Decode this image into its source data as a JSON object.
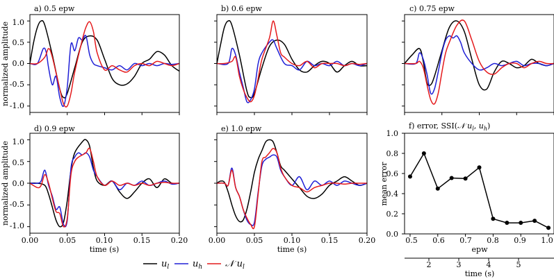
{
  "colors": {
    "ul": "#000000",
    "uh": "#1f1fd6",
    "nul": "#e41a1c"
  },
  "legend": [
    {
      "key": "ul",
      "label": "u_l"
    },
    {
      "key": "uh",
      "label": "u_h"
    },
    {
      "key": "nul",
      "label": "𝒩 u_l"
    }
  ],
  "chart_data": [
    {
      "type": "line",
      "id": "a",
      "title": "a) 0.5 epw",
      "ylabel": "normalized amplitude",
      "xlabel": "",
      "xlim": [
        0.0,
        0.2
      ],
      "ylim": [
        -1.15,
        1.15
      ],
      "xticks": [],
      "yticks": [
        "1.0",
        "0.5",
        "0.0",
        "-0.5",
        "-1.0"
      ],
      "series": [
        {
          "name": "u_l",
          "x": [
            0,
            0.005,
            0.01,
            0.015,
            0.02,
            0.03,
            0.04,
            0.045,
            0.05,
            0.06,
            0.07,
            0.08,
            0.09,
            0.1,
            0.11,
            0.12,
            0.13,
            0.14,
            0.15,
            0.16,
            0.17,
            0.18,
            0.19,
            0.2
          ],
          "y": [
            0,
            0.5,
            0.85,
            1.0,
            0.9,
            0.2,
            -0.6,
            -0.8,
            -0.7,
            -0.1,
            0.5,
            0.65,
            0.55,
            0.1,
            -0.35,
            -0.5,
            -0.48,
            -0.3,
            0.0,
            0.1,
            0.28,
            0.2,
            -0.05,
            -0.18
          ]
        },
        {
          "name": "u_h",
          "x": [
            0,
            0.01,
            0.018,
            0.022,
            0.025,
            0.03,
            0.035,
            0.04,
            0.045,
            0.05,
            0.055,
            0.06,
            0.065,
            0.07,
            0.075,
            0.08,
            0.085,
            0.09,
            0.1,
            0.11,
            0.12,
            0.13,
            0.14,
            0.15,
            0.16,
            0.17,
            0.18,
            0.19,
            0.2
          ],
          "y": [
            0,
            0.0,
            0.35,
            0.25,
            -0.1,
            -0.5,
            -0.3,
            -0.8,
            -1.0,
            -0.55,
            0.45,
            0.3,
            0.6,
            0.55,
            0.65,
            0.2,
            0.0,
            -0.05,
            -0.1,
            -0.15,
            -0.05,
            -0.15,
            0.0,
            -0.05,
            0.0,
            -0.05,
            0.0,
            -0.02,
            0.0
          ]
        },
        {
          "name": "𝒩 u_l",
          "x": [
            0,
            0.01,
            0.02,
            0.025,
            0.03,
            0.04,
            0.045,
            0.05,
            0.055,
            0.06,
            0.07,
            0.075,
            0.08,
            0.085,
            0.09,
            0.1,
            0.11,
            0.12,
            0.13,
            0.14,
            0.15,
            0.16,
            0.17,
            0.18,
            0.19,
            0.2
          ],
          "y": [
            0,
            0.0,
            0.15,
            0.35,
            0.15,
            -0.6,
            -0.95,
            -1.0,
            -0.7,
            -0.2,
            0.55,
            0.85,
            0.98,
            0.75,
            0.25,
            -0.15,
            -0.05,
            -0.15,
            -0.2,
            -0.05,
            0.0,
            -0.05,
            0.05,
            0.0,
            -0.05,
            0.0
          ]
        }
      ]
    },
    {
      "type": "line",
      "id": "b",
      "title": "b) 0.6 epw",
      "ylabel": "",
      "xlabel": "",
      "xlim": [
        0.0,
        0.2
      ],
      "ylim": [
        -1.15,
        1.15
      ],
      "xticks": [],
      "yticks": [],
      "series": [
        {
          "name": "u_l",
          "x": [
            0,
            0.005,
            0.01,
            0.015,
            0.02,
            0.03,
            0.04,
            0.045,
            0.05,
            0.06,
            0.07,
            0.08,
            0.09,
            0.1,
            0.11,
            0.12,
            0.13,
            0.14,
            0.15,
            0.16,
            0.17,
            0.18,
            0.19,
            0.2
          ],
          "y": [
            0,
            0.45,
            0.85,
            1.0,
            0.9,
            0.2,
            -0.65,
            -0.8,
            -0.7,
            -0.1,
            0.4,
            0.55,
            0.45,
            0.1,
            -0.15,
            -0.2,
            -0.05,
            0.05,
            0.0,
            -0.2,
            -0.05,
            0.05,
            -0.05,
            -0.05
          ]
        },
        {
          "name": "u_h",
          "x": [
            0,
            0.015,
            0.02,
            0.025,
            0.03,
            0.035,
            0.04,
            0.045,
            0.05,
            0.055,
            0.06,
            0.07,
            0.075,
            0.08,
            0.09,
            0.1,
            0.11,
            0.12,
            0.13,
            0.14,
            0.15,
            0.16,
            0.17,
            0.18,
            0.19,
            0.2
          ],
          "y": [
            0,
            0.0,
            0.35,
            0.2,
            -0.2,
            -0.55,
            -0.9,
            -0.85,
            -0.6,
            0.0,
            0.25,
            0.5,
            0.55,
            0.35,
            0.0,
            -0.05,
            -0.15,
            0.05,
            -0.05,
            0.0,
            -0.05,
            0.05,
            -0.05,
            0.0,
            -0.05,
            0.0
          ]
        },
        {
          "name": "𝒩 u_l",
          "x": [
            0,
            0.01,
            0.02,
            0.025,
            0.03,
            0.035,
            0.04,
            0.045,
            0.05,
            0.055,
            0.06,
            0.07,
            0.075,
            0.08,
            0.085,
            0.09,
            0.1,
            0.11,
            0.12,
            0.13,
            0.14,
            0.15,
            0.16,
            0.17,
            0.18,
            0.19,
            0.2
          ],
          "y": [
            0,
            0.0,
            0.05,
            0.15,
            -0.3,
            -0.6,
            -0.8,
            -0.9,
            -0.75,
            -0.35,
            0.1,
            0.6,
            1.0,
            0.65,
            0.25,
            0.15,
            0.0,
            -0.05,
            0.05,
            -0.1,
            0.0,
            0.0,
            0.0,
            -0.05,
            0.0,
            -0.02,
            0.0
          ]
        }
      ]
    },
    {
      "type": "line",
      "id": "c",
      "title": "c) 0.75 epw",
      "ylabel": "",
      "xlabel": "",
      "xlim": [
        0.0,
        0.2
      ],
      "ylim": [
        -1.15,
        1.15
      ],
      "xticks": [],
      "yticks": [],
      "series": [
        {
          "name": "u_l",
          "x": [
            0,
            0.01,
            0.02,
            0.025,
            0.03,
            0.035,
            0.04,
            0.05,
            0.06,
            0.07,
            0.08,
            0.09,
            0.1,
            0.11,
            0.12,
            0.13,
            0.14,
            0.15,
            0.16,
            0.17,
            0.18,
            0.19,
            0.2
          ],
          "y": [
            0,
            0.2,
            0.35,
            0.05,
            -0.45,
            -0.5,
            -0.3,
            0.3,
            0.85,
            1.0,
            0.75,
            0.1,
            -0.5,
            -0.6,
            -0.2,
            0.05,
            0.0,
            -0.1,
            -0.05,
            0.1,
            0.0,
            -0.05,
            0.0
          ]
        },
        {
          "name": "u_h",
          "x": [
            0,
            0.015,
            0.02,
            0.025,
            0.03,
            0.035,
            0.04,
            0.045,
            0.05,
            0.055,
            0.06,
            0.065,
            0.07,
            0.075,
            0.08,
            0.09,
            0.1,
            0.11,
            0.12,
            0.13,
            0.14,
            0.15,
            0.16,
            0.17,
            0.18,
            0.19,
            0.2
          ],
          "y": [
            0,
            0.0,
            0.25,
            0.1,
            -0.25,
            -0.7,
            -0.6,
            -0.2,
            0.25,
            0.55,
            0.65,
            0.6,
            0.65,
            0.5,
            0.25,
            0.0,
            -0.15,
            -0.1,
            0.0,
            -0.05,
            0.0,
            0.05,
            -0.05,
            0.0,
            0.0,
            -0.05,
            0.0
          ]
        },
        {
          "name": "𝒩 u_l",
          "x": [
            0,
            0.015,
            0.02,
            0.025,
            0.03,
            0.035,
            0.04,
            0.045,
            0.05,
            0.055,
            0.06,
            0.07,
            0.08,
            0.09,
            0.1,
            0.11,
            0.12,
            0.13,
            0.14,
            0.15,
            0.16,
            0.17,
            0.18,
            0.19,
            0.2
          ],
          "y": [
            0,
            0.0,
            0.05,
            -0.1,
            -0.5,
            -0.85,
            -0.95,
            -0.7,
            -0.2,
            0.25,
            0.5,
            0.9,
            1.0,
            0.55,
            0.05,
            -0.2,
            -0.25,
            -0.1,
            0.0,
            0.0,
            -0.1,
            0.0,
            0.05,
            0.0,
            0.0
          ]
        }
      ]
    },
    {
      "type": "line",
      "id": "d",
      "title": "d) 0.9 epw",
      "ylabel": "normalized amplitude",
      "xlabel": "time (s)",
      "xlim": [
        0.0,
        0.2
      ],
      "ylim": [
        -1.15,
        1.15
      ],
      "xticks": [
        "0.00",
        "0.05",
        "0.10",
        "0.15",
        "0.20"
      ],
      "yticks": [
        "1.0",
        "0.5",
        "0.0",
        "-0.5",
        "-1.0"
      ],
      "series": [
        {
          "name": "u_l",
          "x": [
            0,
            0.01,
            0.02,
            0.025,
            0.03,
            0.035,
            0.04,
            0.045,
            0.05,
            0.055,
            0.06,
            0.07,
            0.075,
            0.08,
            0.085,
            0.09,
            0.1,
            0.11,
            0.12,
            0.13,
            0.14,
            0.15,
            0.16,
            0.17,
            0.18,
            0.19,
            0.2
          ],
          "y": [
            0,
            0.0,
            -0.05,
            -0.25,
            -0.55,
            -0.85,
            -1.0,
            -0.9,
            -0.4,
            0.3,
            0.7,
            0.95,
            1.0,
            0.85,
            0.35,
            0.05,
            -0.05,
            0.05,
            -0.2,
            -0.35,
            -0.2,
            0.0,
            0.1,
            -0.1,
            0.1,
            0.0,
            0.0
          ]
        },
        {
          "name": "u_h",
          "x": [
            0,
            0.01,
            0.015,
            0.02,
            0.025,
            0.03,
            0.035,
            0.04,
            0.045,
            0.05,
            0.055,
            0.06,
            0.065,
            0.07,
            0.075,
            0.08,
            0.085,
            0.09,
            0.1,
            0.11,
            0.12,
            0.13,
            0.14,
            0.15,
            0.16,
            0.17,
            0.18,
            0.19,
            0.2
          ],
          "y": [
            0,
            0.0,
            0.05,
            0.3,
            -0.05,
            -0.3,
            -0.6,
            -0.55,
            -0.95,
            -0.85,
            0.35,
            0.6,
            0.7,
            0.65,
            0.7,
            0.6,
            0.3,
            0.15,
            -0.05,
            0.05,
            -0.15,
            0.0,
            -0.05,
            0.05,
            -0.05,
            0.0,
            0.05,
            -0.02,
            0.0
          ]
        },
        {
          "name": "𝒩 u_l",
          "x": [
            0,
            0.01,
            0.015,
            0.02,
            0.025,
            0.03,
            0.035,
            0.04,
            0.045,
            0.05,
            0.055,
            0.06,
            0.065,
            0.07,
            0.075,
            0.08,
            0.085,
            0.09,
            0.1,
            0.11,
            0.12,
            0.13,
            0.14,
            0.15,
            0.16,
            0.17,
            0.18,
            0.19,
            0.2
          ],
          "y": [
            0,
            -0.1,
            -0.05,
            0.2,
            0.0,
            -0.35,
            -0.65,
            -0.7,
            -1.0,
            -0.8,
            0.2,
            0.5,
            0.6,
            0.65,
            0.7,
            0.8,
            0.5,
            0.15,
            -0.05,
            0.05,
            -0.05,
            0.0,
            -0.05,
            0.0,
            -0.05,
            0.0,
            0.02,
            0.0,
            0.0
          ]
        }
      ]
    },
    {
      "type": "line",
      "id": "e",
      "title": "e) 1.0 epw",
      "ylabel": "",
      "xlabel": "time (s)",
      "xlim": [
        0.0,
        0.2
      ],
      "ylim": [
        -1.15,
        1.15
      ],
      "xticks": [
        "0.00",
        "0.05",
        "0.10",
        "0.15",
        "0.20"
      ],
      "yticks": [],
      "series": [
        {
          "name": "u_l",
          "x": [
            0,
            0.005,
            0.01,
            0.015,
            0.02,
            0.025,
            0.03,
            0.035,
            0.04,
            0.045,
            0.05,
            0.055,
            0.06,
            0.065,
            0.07,
            0.075,
            0.08,
            0.085,
            0.09,
            0.1,
            0.11,
            0.12,
            0.13,
            0.14,
            0.15,
            0.16,
            0.17,
            0.18,
            0.19,
            0.2
          ],
          "y": [
            0,
            0.05,
            0.02,
            -0.2,
            -0.5,
            -0.75,
            -0.88,
            -0.85,
            -0.6,
            -0.2,
            0.25,
            0.55,
            0.75,
            0.95,
            1.0,
            0.95,
            0.7,
            0.4,
            0.3,
            0.1,
            -0.1,
            -0.3,
            -0.35,
            -0.25,
            -0.05,
            0.05,
            0.15,
            0.05,
            -0.05,
            0.0
          ]
        },
        {
          "name": "u_h",
          "x": [
            0,
            0.01,
            0.015,
            0.02,
            0.025,
            0.03,
            0.035,
            0.04,
            0.045,
            0.05,
            0.055,
            0.06,
            0.065,
            0.07,
            0.075,
            0.08,
            0.085,
            0.09,
            0.1,
            0.11,
            0.12,
            0.13,
            0.14,
            0.15,
            0.16,
            0.17,
            0.18,
            0.19,
            0.2
          ],
          "y": [
            0,
            0.0,
            -0.05,
            0.35,
            -0.1,
            -0.3,
            -0.6,
            -0.85,
            -0.95,
            -0.9,
            -0.2,
            0.4,
            0.55,
            0.6,
            0.65,
            0.6,
            0.3,
            0.15,
            -0.05,
            0.15,
            -0.15,
            0.05,
            -0.05,
            0.05,
            -0.05,
            0.05,
            0.0,
            -0.05,
            0.0
          ]
        },
        {
          "name": "𝒩 u_l",
          "x": [
            0,
            0.01,
            0.015,
            0.02,
            0.025,
            0.03,
            0.035,
            0.04,
            0.045,
            0.05,
            0.055,
            0.06,
            0.065,
            0.07,
            0.075,
            0.08,
            0.085,
            0.09,
            0.1,
            0.11,
            0.12,
            0.13,
            0.14,
            0.15,
            0.16,
            0.17,
            0.18,
            0.19,
            0.2
          ],
          "y": [
            0,
            0.0,
            -0.05,
            0.3,
            -0.1,
            -0.3,
            -0.6,
            -0.8,
            -0.95,
            -1.0,
            -0.25,
            0.5,
            0.6,
            0.7,
            0.8,
            0.7,
            0.35,
            0.15,
            -0.05,
            -0.1,
            -0.2,
            -0.1,
            -0.05,
            0.0,
            0.0,
            -0.02,
            0.0,
            0.0,
            0.0
          ]
        }
      ]
    },
    {
      "type": "line",
      "id": "f",
      "title": "f) error, SSI(𝒩 u_l, u_h)",
      "ylabel": "mean error",
      "xlabel": "epw",
      "xlim": [
        0.48,
        1.02
      ],
      "ylim": [
        0.0,
        1.0
      ],
      "xticks": [
        "0.5",
        "0.6",
        "0.7",
        "0.8",
        "0.9",
        "1.0"
      ],
      "yticks": [
        "1.0",
        "0.8",
        "0.6",
        "0.4",
        "0.2",
        "0.0"
      ],
      "series": [
        {
          "name": "mean error",
          "x": [
            0.5,
            0.55,
            0.6,
            0.65,
            0.7,
            0.75,
            0.8,
            0.85,
            0.9,
            0.95,
            1.0
          ],
          "y": [
            0.57,
            0.8,
            0.45,
            0.555,
            0.55,
            0.66,
            0.15,
            0.11,
            0.11,
            0.13,
            0.06
          ]
        }
      ],
      "secondary_xlabel": "time (s)",
      "secondary_xticks": [
        "2",
        "3",
        "4",
        "5"
      ]
    }
  ]
}
